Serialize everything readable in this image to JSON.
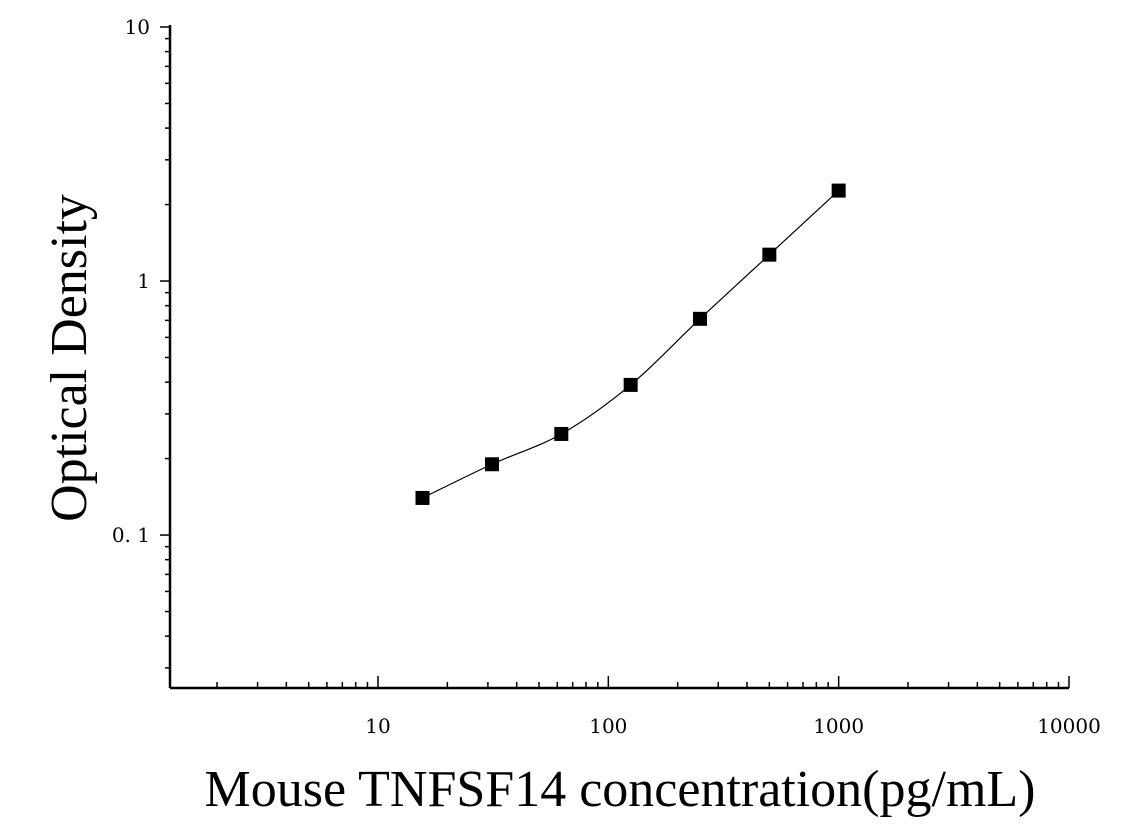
{
  "chart_data": {
    "type": "scatter",
    "title": "",
    "xlabel": "Mouse TNFSF14 concentration(pg/mL)",
    "ylabel": "Optical Density",
    "x_scale": "log",
    "y_scale": "log",
    "xlim": [
      1.25,
      10000
    ],
    "ylim": [
      0.025,
      10
    ],
    "x_ticks": [
      {
        "value": 10,
        "label": "10"
      },
      {
        "value": 100,
        "label": "100"
      },
      {
        "value": 1000,
        "label": "1000"
      },
      {
        "value": 10000,
        "label": "10000"
      }
    ],
    "y_ticks": [
      {
        "value": 0.1,
        "label": "0. 1"
      },
      {
        "value": 1,
        "label": "1"
      },
      {
        "value": 10,
        "label": "10"
      }
    ],
    "grid": false,
    "legend": "none",
    "series": [
      {
        "marker": "square",
        "color": "#000000",
        "x": [
          15.6,
          31.25,
          62.5,
          125,
          250,
          500,
          1000
        ],
        "y": [
          0.14,
          0.19,
          0.25,
          0.39,
          0.71,
          1.27,
          2.27
        ]
      }
    ],
    "fit_curve": {
      "color": "#000000",
      "style": "solid"
    }
  }
}
